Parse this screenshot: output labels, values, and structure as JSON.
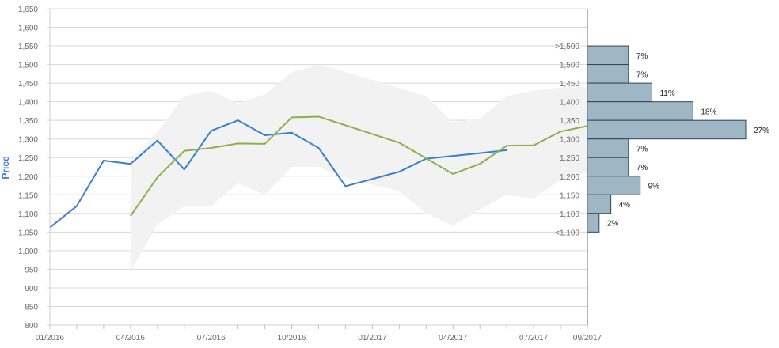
{
  "chart_data": {
    "type": "line",
    "ylabel": "Price",
    "ylim": [
      800,
      1650
    ],
    "y_ticks": [
      "800",
      "850",
      "900",
      "950",
      "1,000",
      "1,050",
      "1,100",
      "1,150",
      "1,200",
      "1,250",
      "1,300",
      "1,350",
      "1,400",
      "1,450",
      "1,500",
      "1,550",
      "1,600",
      "1,650"
    ],
    "x_ticks": [
      "01/2016",
      "04/2016",
      "07/2016",
      "10/2016",
      "01/2017",
      "04/2017",
      "07/2017",
      "09/2017"
    ],
    "grid": true,
    "series": [
      {
        "color": "#3a7fce",
        "points": [
          [
            "2016-01-01",
            1062
          ],
          [
            "2016-02-01",
            1120
          ],
          [
            "2016-03-01",
            1242
          ],
          [
            "2016-04-01",
            1233
          ],
          [
            "2016-05-01",
            1296
          ],
          [
            "2016-06-01",
            1218
          ],
          [
            "2016-07-01",
            1322
          ],
          [
            "2016-08-01",
            1350
          ],
          [
            "2016-09-01",
            1310
          ],
          [
            "2016-10-01",
            1317
          ],
          [
            "2016-11-01",
            1276
          ],
          [
            "2016-12-01",
            1173
          ],
          [
            "2017-02-01",
            1212
          ],
          [
            "2017-03-01",
            1247
          ],
          [
            "2017-05-01",
            1262
          ],
          [
            "2017-06-01",
            1270
          ]
        ]
      },
      {
        "color": "#8db04e",
        "points": [
          [
            "2016-04-01",
            1093
          ],
          [
            "2016-05-01",
            1197
          ],
          [
            "2016-06-01",
            1268
          ],
          [
            "2016-07-01",
            1276
          ],
          [
            "2016-08-01",
            1288
          ],
          [
            "2016-09-01",
            1287
          ],
          [
            "2016-10-01",
            1358
          ],
          [
            "2016-11-01",
            1360
          ],
          [
            "2017-02-01",
            1290
          ],
          [
            "2017-04-01",
            1206
          ],
          [
            "2017-05-01",
            1233
          ],
          [
            "2017-06-01",
            1282
          ],
          [
            "2017-07-01",
            1283
          ],
          [
            "2017-08-01",
            1320
          ],
          [
            "2017-09-01",
            1335
          ]
        ]
      }
    ],
    "range_band": {
      "color": "#f2f2f2",
      "upper": [
        [
          "2016-04-01",
          1240
        ],
        [
          "2016-05-01",
          1320
        ],
        [
          "2016-06-01",
          1415
        ],
        [
          "2016-07-01",
          1430
        ],
        [
          "2016-08-01",
          1395
        ],
        [
          "2016-09-01",
          1420
        ],
        [
          "2016-10-01",
          1480
        ],
        [
          "2016-11-01",
          1500
        ],
        [
          "2016-12-01",
          1480
        ],
        [
          "2017-03-01",
          1415
        ],
        [
          "2017-04-01",
          1345
        ],
        [
          "2017-05-01",
          1355
        ],
        [
          "2017-06-01",
          1415
        ],
        [
          "2017-07-01",
          1430
        ],
        [
          "2017-08-01",
          1438
        ],
        [
          "2017-09-01",
          1440
        ]
      ],
      "lower": [
        [
          "2016-04-01",
          945
        ],
        [
          "2016-05-01",
          1070
        ],
        [
          "2016-06-01",
          1118
        ],
        [
          "2016-07-01",
          1120
        ],
        [
          "2016-08-01",
          1180
        ],
        [
          "2016-09-01",
          1150
        ],
        [
          "2016-10-01",
          1225
        ],
        [
          "2016-11-01",
          1225
        ],
        [
          "2016-12-01",
          1195
        ],
        [
          "2017-02-01",
          1160
        ],
        [
          "2017-03-01",
          1100
        ],
        [
          "2017-04-01",
          1067
        ],
        [
          "2017-05-01",
          1110
        ],
        [
          "2017-06-01",
          1150
        ],
        [
          "2017-07-01",
          1140
        ],
        [
          "2017-08-01",
          1190
        ],
        [
          "2017-09-01",
          1210
        ]
      ]
    },
    "distribution": {
      "color": "#9fb7c4",
      "bins": [
        {
          "label": ">1,500",
          "lo": 1500,
          "hi": 1550,
          "pct": 7,
          "pct_label": "7%"
        },
        {
          "label": "1,500",
          "lo": 1450,
          "hi": 1500,
          "pct": 7,
          "pct_label": "7%"
        },
        {
          "label": "1,450",
          "lo": 1400,
          "hi": 1450,
          "pct": 11,
          "pct_label": "11%"
        },
        {
          "label": "1,400",
          "lo": 1350,
          "hi": 1400,
          "pct": 18,
          "pct_label": "18%"
        },
        {
          "label": "1,350",
          "lo": 1300,
          "hi": 1350,
          "pct": 27,
          "pct_label": "27%"
        },
        {
          "label": "1,300",
          "lo": 1250,
          "hi": 1300,
          "pct": 7,
          "pct_label": "7%"
        },
        {
          "label": "1,250",
          "lo": 1200,
          "hi": 1250,
          "pct": 7,
          "pct_label": "7%"
        },
        {
          "label": "1,200",
          "lo": 1150,
          "hi": 1200,
          "pct": 9,
          "pct_label": "9%"
        },
        {
          "label": "1,150",
          "lo": 1100,
          "hi": 1150,
          "pct": 4,
          "pct_label": "4%"
        },
        {
          "label": "1,100",
          "lo": 1050,
          "hi": 1100,
          "pct": 2,
          "pct_label": "2%"
        },
        {
          "label": "<1,100",
          "lo": 1050,
          "hi": 1050,
          "pct": 0,
          "pct_label": ""
        }
      ]
    }
  }
}
